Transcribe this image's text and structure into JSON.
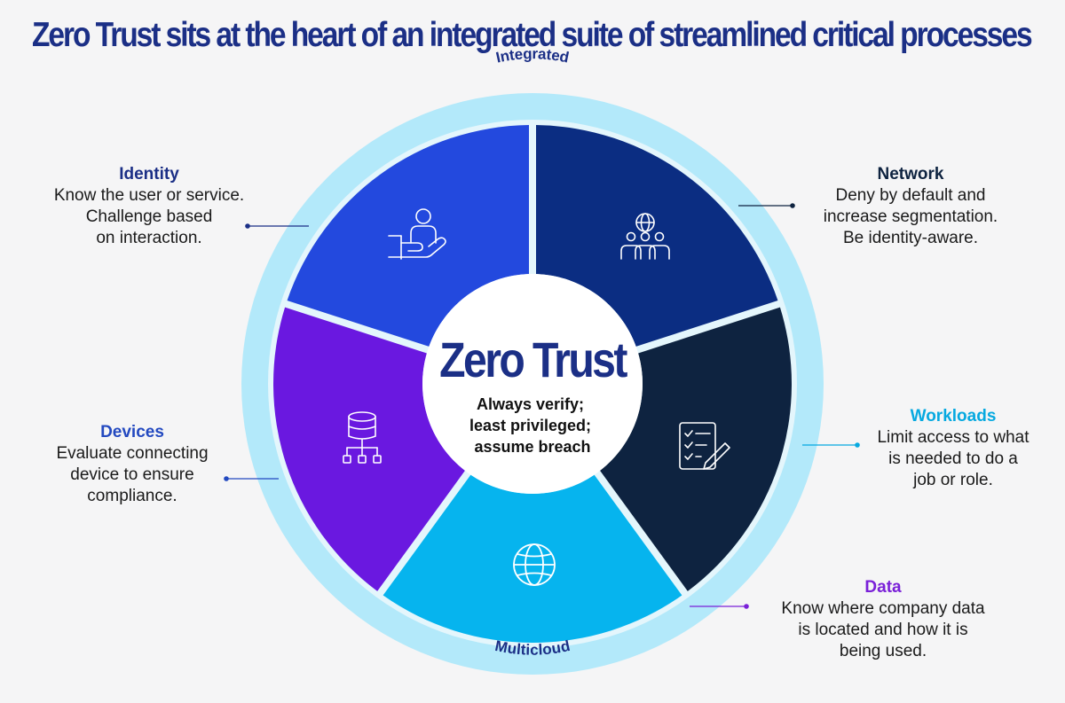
{
  "title": "Zero Trust sits at the heart of an integrated suite of streamlined critical processes",
  "ring": {
    "top_label": "Integrated",
    "bottom_label": "Multicloud"
  },
  "center": {
    "title": "Zero Trust",
    "subtitle": "Always verify;\nleast privileged;\nassume breach"
  },
  "segments": [
    {
      "key": "identity",
      "icon": "user-hand-icon",
      "color": "#0b2d82"
    },
    {
      "key": "network",
      "icon": "globe-people-icon",
      "color": "#0e2340"
    },
    {
      "key": "workloads",
      "icon": "checklist-pencil-icon",
      "color": "#06b4ee"
    },
    {
      "key": "data",
      "icon": "globe-icon",
      "color": "#6a18e0"
    },
    {
      "key": "devices",
      "icon": "database-network-icon",
      "color": "#2349de"
    }
  ],
  "callouts": {
    "identity": {
      "heading": "Identity",
      "body": "Know the user or service.\nChallenge based\non interaction.",
      "color": "#1b2f86"
    },
    "network": {
      "heading": "Network",
      "body": "Deny by default and\nincrease segmentation.\nBe identity-aware.",
      "color": "#0e2340"
    },
    "workloads": {
      "heading": "Workloads",
      "body": "Limit access to what\nis needed to do a\njob or role.",
      "color": "#06a9e0"
    },
    "data": {
      "heading": "Data",
      "body": "Know where company data\nis located and how it is\nbeing used.",
      "color": "#7a20d8"
    },
    "devices": {
      "heading": "Devices",
      "body": "Evaluate connecting\ndevice to ensure\ncompliance.",
      "color": "#2349c0"
    }
  },
  "colors": {
    "ring": "#b3e9fa",
    "gap": "#e4f6fc",
    "center": "#ffffff",
    "title": "#1b2f86",
    "ring_text": "#1b2f86"
  }
}
